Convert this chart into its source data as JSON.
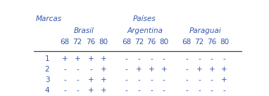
{
  "title_col1": "Marcas",
  "title_paises": "Países",
  "countries": [
    "Brasil",
    "Argentina",
    "Paraguai"
  ],
  "concentrations": [
    "68",
    "72",
    "76",
    "80"
  ],
  "brands": [
    "1",
    "2",
    "3",
    "4"
  ],
  "brasil_data": [
    [
      "+",
      "+",
      "+",
      "+"
    ],
    [
      "-",
      "-",
      "-",
      "+"
    ],
    [
      "-",
      "-",
      "+",
      "+"
    ],
    [
      "-",
      "-",
      "+",
      "+"
    ]
  ],
  "argentina_data": [
    [
      "-",
      "-",
      "-",
      "-"
    ],
    [
      "-",
      "+",
      "+",
      "+"
    ],
    [
      "-",
      "-",
      "-",
      "-"
    ],
    [
      "-",
      "-",
      "-",
      "-"
    ]
  ],
  "paraguai_data": [
    [
      "-",
      "-",
      "-",
      "-"
    ],
    [
      "-",
      "+",
      "+",
      "+"
    ],
    [
      "-",
      "-",
      "-",
      "+"
    ],
    [
      "-",
      "-",
      "-",
      "-"
    ]
  ],
  "text_color": "#3355aa",
  "line_color": "#444444",
  "bg_color": "#ffffff",
  "font_size": 7.5,
  "header_font_size": 7.5
}
